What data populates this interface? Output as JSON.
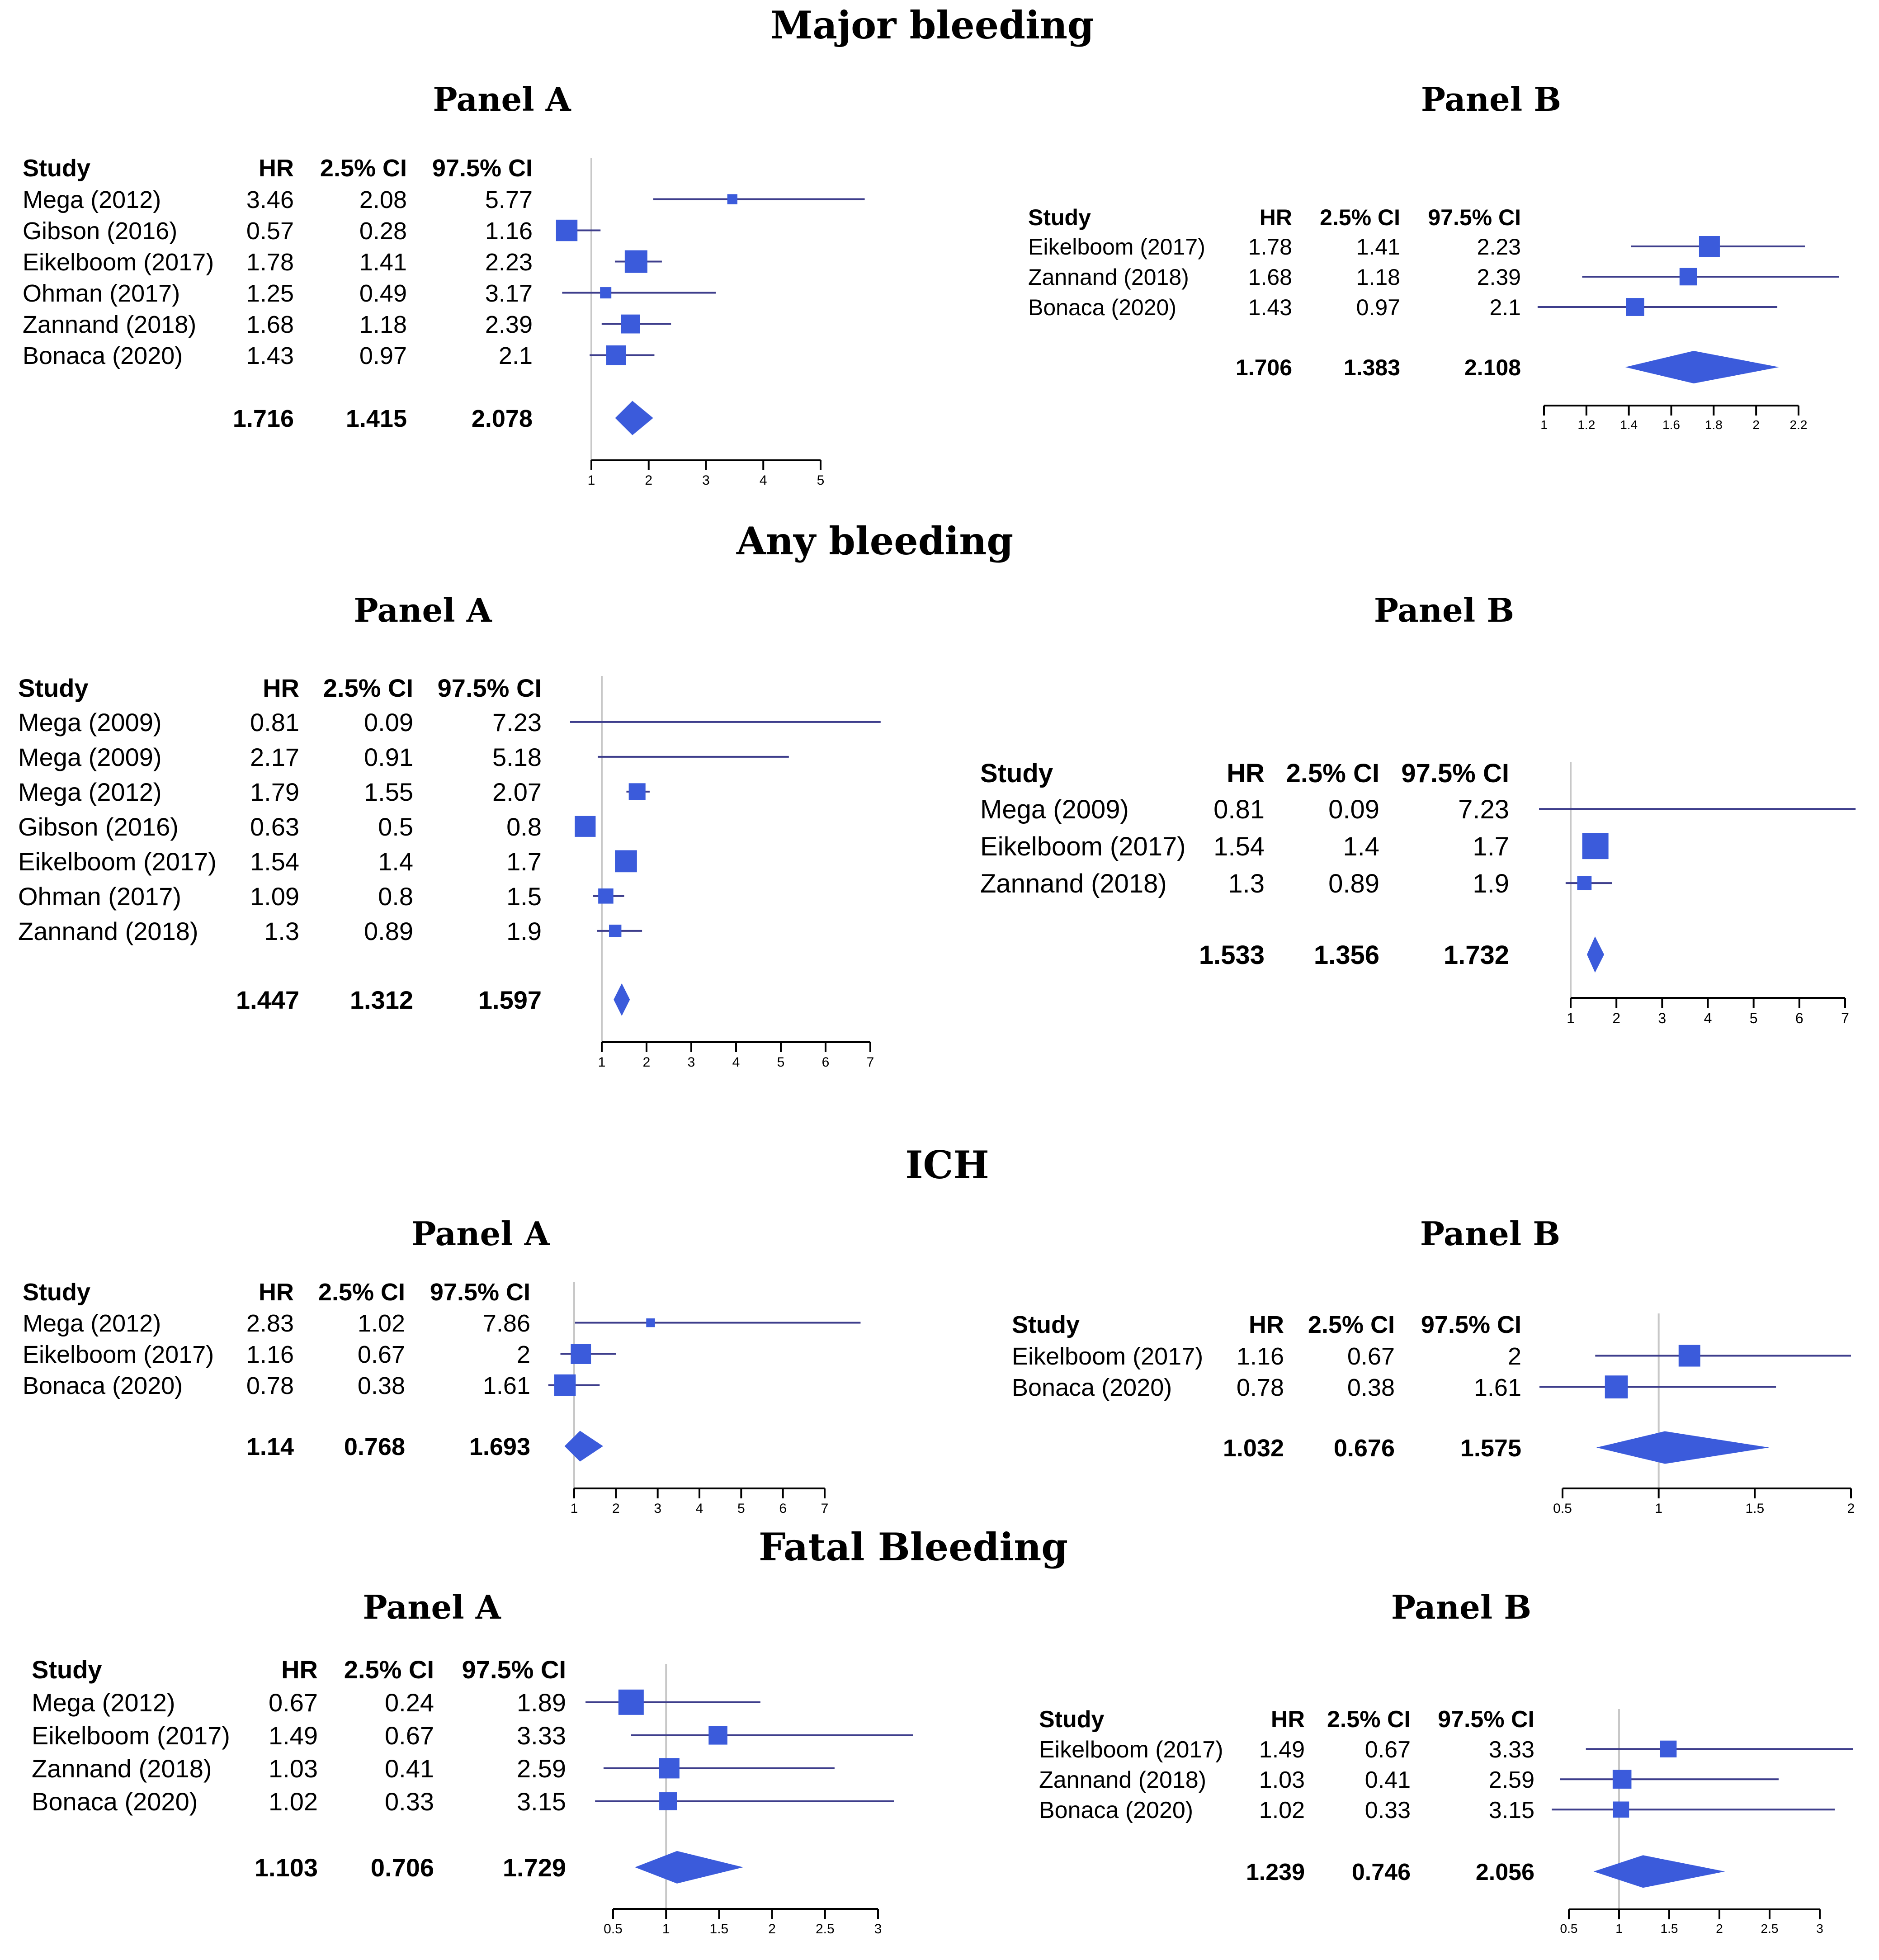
{
  "colors": {
    "marker": "#3b5bdb",
    "ci_line": "#3e3e8c",
    "axis": "#000000",
    "ref_line": "#c8c8c8"
  },
  "chart_data": [
    {
      "type": "forest",
      "section": "Major bleeding",
      "panel": "Panel A",
      "headers": {
        "study": "Study",
        "hr": "HR",
        "lo": "2.5% CI",
        "hi": "97.5% CI"
      },
      "rows": [
        {
          "study": "Mega (2012)",
          "hr": "3.46",
          "lo": "2.08",
          "hi": "5.77",
          "weight": 0.2
        },
        {
          "study": "Gibson (2016)",
          "hr": "0.57",
          "lo": "0.28",
          "hi": "1.16",
          "weight": 0.9
        },
        {
          "study": "Eikelboom (2017)",
          "hr": "1.78",
          "lo": "1.41",
          "hi": "2.23",
          "weight": 1.0
        },
        {
          "study": "Ohman (2017)",
          "hr": "1.25",
          "lo": "0.49",
          "hi": "3.17",
          "weight": 0.25
        },
        {
          "study": "Zannand (2018)",
          "hr": "1.68",
          "lo": "1.18",
          "hi": "2.39",
          "weight": 0.7
        },
        {
          "study": "Bonaca (2020)",
          "hr": "1.43",
          "lo": "0.97",
          "hi": "2.1",
          "weight": 0.75
        }
      ],
      "summary": {
        "hr": "1.716",
        "lo": "1.415",
        "hi": "2.078"
      },
      "axis": {
        "ticks": [
          "1",
          "2",
          "3",
          "4",
          "5"
        ],
        "min": 1,
        "max": 5,
        "ref": 1
      }
    },
    {
      "type": "forest",
      "section": "Major bleeding",
      "panel": "Panel B",
      "headers": {
        "study": "Study",
        "hr": "HR",
        "lo": "2.5% CI",
        "hi": "97.5% CI"
      },
      "rows": [
        {
          "study": "Eikelboom (2017)",
          "hr": "1.78",
          "lo": "1.41",
          "hi": "2.23",
          "weight": 1.0
        },
        {
          "study": "Zannand (2018)",
          "hr": "1.68",
          "lo": "1.18",
          "hi": "2.39",
          "weight": 0.7
        },
        {
          "study": "Bonaca (2020)",
          "hr": "1.43",
          "lo": "0.97",
          "hi": "2.1",
          "weight": 0.75
        }
      ],
      "summary": {
        "hr": "1.706",
        "lo": "1.383",
        "hi": "2.108"
      },
      "axis": {
        "ticks": [
          "1",
          "1.2",
          "1.4",
          "1.6",
          "1.8",
          "2",
          "2.2"
        ],
        "min": 1,
        "max": 2.2,
        "ref": null
      }
    },
    {
      "type": "forest",
      "section": "Any bleeding",
      "panel": "Panel A",
      "headers": {
        "study": "Study",
        "hr": "HR",
        "lo": "2.5% CI",
        "hi": "97.5% CI"
      },
      "rows": [
        {
          "study": "Mega (2009)",
          "hr": "0.81",
          "lo": "0.09",
          "hi": "7.23",
          "weight": 0.0
        },
        {
          "study": "Mega (2009)",
          "hr": "2.17",
          "lo": "0.91",
          "hi": "5.18",
          "weight": 0.0
        },
        {
          "study": "Mega (2012)",
          "hr": "1.79",
          "lo": "1.55",
          "hi": "2.07",
          "weight": 0.55
        },
        {
          "study": "Gibson (2016)",
          "hr": "0.63",
          "lo": "0.5",
          "hi": "0.8",
          "weight": 0.85
        },
        {
          "study": "Eikelboom (2017)",
          "hr": "1.54",
          "lo": "1.4",
          "hi": "1.7",
          "weight": 0.95
        },
        {
          "study": "Ohman (2017)",
          "hr": "1.09",
          "lo": "0.8",
          "hi": "1.5",
          "weight": 0.45
        },
        {
          "study": "Zannand (2018)",
          "hr": "1.3",
          "lo": "0.89",
          "hi": "1.9",
          "weight": 0.3
        }
      ],
      "summary": {
        "hr": "1.447",
        "lo": "1.312",
        "hi": "1.597"
      },
      "axis": {
        "ticks": [
          "1",
          "2",
          "3",
          "4",
          "5",
          "6",
          "7"
        ],
        "min": 1,
        "max": 7,
        "ref": 1
      }
    },
    {
      "type": "forest",
      "section": "Any bleeding",
      "panel": "Panel B",
      "headers": {
        "study": "Study",
        "hr": "HR",
        "lo": "2.5% CI",
        "hi": "97.5% CI"
      },
      "rows": [
        {
          "study": "Mega (2009)",
          "hr": "0.81",
          "lo": "0.09",
          "hi": "7.23",
          "weight": 0.0
        },
        {
          "study": "Eikelboom (2017)",
          "hr": "1.54",
          "lo": "1.4",
          "hi": "1.7",
          "weight": 1.0
        },
        {
          "study": "Zannand (2018)",
          "hr": "1.3",
          "lo": "0.89",
          "hi": "1.9",
          "weight": 0.3
        }
      ],
      "summary": {
        "hr": "1.533",
        "lo": "1.356",
        "hi": "1.732"
      },
      "axis": {
        "ticks": [
          "1",
          "2",
          "3",
          "4",
          "5",
          "6",
          "7"
        ],
        "min": 1,
        "max": 7,
        "ref": 1
      }
    },
    {
      "type": "forest",
      "section": "ICH",
      "panel": "Panel A",
      "headers": {
        "study": "Study",
        "hr": "HR",
        "lo": "2.5% CI",
        "hi": "97.5% CI"
      },
      "rows": [
        {
          "study": "Mega (2012)",
          "hr": "2.83",
          "lo": "1.02",
          "hi": "7.86",
          "weight": 0.15
        },
        {
          "study": "Eikelboom (2017)",
          "hr": "1.16",
          "lo": "0.67",
          "hi": "2",
          "weight": 0.8
        },
        {
          "study": "Bonaca (2020)",
          "hr": "0.78",
          "lo": "0.38",
          "hi": "1.61",
          "weight": 0.9
        }
      ],
      "summary": {
        "hr": "1.14",
        "lo": "0.768",
        "hi": "1.693"
      },
      "axis": {
        "ticks": [
          "1",
          "2",
          "3",
          "4",
          "5",
          "6",
          "7"
        ],
        "min": 1,
        "max": 7,
        "ref": 1
      }
    },
    {
      "type": "forest",
      "section": "ICH",
      "panel": "Panel B",
      "headers": {
        "study": "Study",
        "hr": "HR",
        "lo": "2.5% CI",
        "hi": "97.5% CI"
      },
      "rows": [
        {
          "study": "Eikelboom (2017)",
          "hr": "1.16",
          "lo": "0.67",
          "hi": "2",
          "weight": 0.85
        },
        {
          "study": "Bonaca (2020)",
          "hr": "0.78",
          "lo": "0.38",
          "hi": "1.61",
          "weight": 0.95
        }
      ],
      "summary": {
        "hr": "1.032",
        "lo": "0.676",
        "hi": "1.575"
      },
      "axis": {
        "ticks": [
          "0.5",
          "1",
          "1.5",
          "2"
        ],
        "min": 0.5,
        "max": 2,
        "ref": 1
      }
    },
    {
      "type": "forest",
      "section": "Fatal Bleeding",
      "panel": "Panel A",
      "headers": {
        "study": "Study",
        "hr": "HR",
        "lo": "2.5% CI",
        "hi": "97.5% CI"
      },
      "rows": [
        {
          "study": "Mega (2012)",
          "hr": "0.67",
          "lo": "0.24",
          "hi": "1.89",
          "weight": 1.0
        },
        {
          "study": "Eikelboom (2017)",
          "hr": "1.49",
          "lo": "0.67",
          "hi": "3.33",
          "weight": 0.55
        },
        {
          "study": "Zannand (2018)",
          "hr": "1.03",
          "lo": "0.41",
          "hi": "2.59",
          "weight": 0.65
        },
        {
          "study": "Bonaca (2020)",
          "hr": "1.02",
          "lo": "0.33",
          "hi": "3.15",
          "weight": 0.5
        }
      ],
      "summary": {
        "hr": "1.103",
        "lo": "0.706",
        "hi": "1.729"
      },
      "axis": {
        "ticks": [
          "0.5",
          "1",
          "1.5",
          "2",
          "2.5",
          "3"
        ],
        "min": 0.5,
        "max": 3,
        "ref": 1
      }
    },
    {
      "type": "forest",
      "section": "Fatal Bleeding",
      "panel": "Panel B",
      "headers": {
        "study": "Study",
        "hr": "HR",
        "lo": "2.5% CI",
        "hi": "97.5% CI"
      },
      "rows": [
        {
          "study": "Eikelboom (2017)",
          "hr": "1.49",
          "lo": "0.67",
          "hi": "3.33",
          "weight": 0.6
        },
        {
          "study": "Zannand (2018)",
          "hr": "1.03",
          "lo": "0.41",
          "hi": "2.59",
          "weight": 0.75
        },
        {
          "study": "Bonaca (2020)",
          "hr": "1.02",
          "lo": "0.33",
          "hi": "3.15",
          "weight": 0.55
        }
      ],
      "summary": {
        "hr": "1.239",
        "lo": "0.746",
        "hi": "2.056"
      },
      "axis": {
        "ticks": [
          "0.5",
          "1",
          "1.5",
          "2",
          "2.5",
          "3"
        ],
        "min": 0.5,
        "max": 3,
        "ref": 1
      }
    }
  ]
}
